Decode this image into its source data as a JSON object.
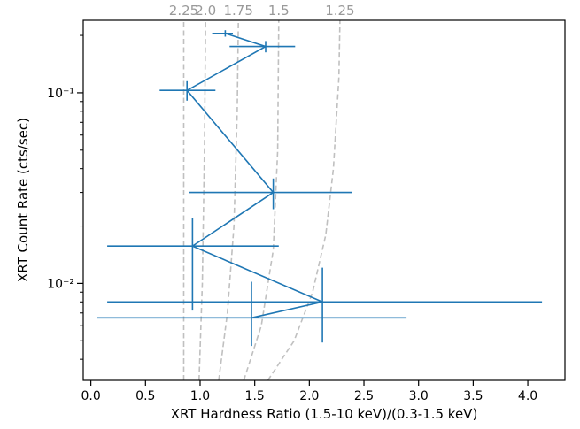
{
  "chart_data": {
    "type": "scatter",
    "title": "",
    "xlabel": "XRT Hardness Ratio (1.5-10 keV)/(0.3-1.5 keV)",
    "ylabel": "XRT Count Rate (cts/sec)",
    "xlim": [
      -0.07,
      4.34
    ],
    "ylim": [
      0.0031,
      0.24
    ],
    "yscale": "log",
    "xticks": [
      0.0,
      0.5,
      1.0,
      1.5,
      2.0,
      2.5,
      3.0,
      3.5,
      4.0
    ],
    "xtick_labels": [
      "0.0",
      "0.5",
      "1.0",
      "1.5",
      "2.0",
      "2.5",
      "3.0",
      "3.5",
      "4.0"
    ],
    "yticks_major": [
      0.01,
      0.1
    ],
    "ytick_labels": [
      "10⁻²",
      "10⁻¹"
    ],
    "grid": false,
    "series": [
      {
        "color": "#1f77b4",
        "points": [
          {
            "x": 1.23,
            "y": 0.205,
            "xerr": [
              0.12,
              0.07
            ],
            "yerr": [
              0.008,
              0.008
            ]
          },
          {
            "x": 1.6,
            "y": 0.175,
            "xerr": [
              0.33,
              0.27
            ],
            "yerr": [
              0.012,
              0.012
            ]
          },
          {
            "x": 0.88,
            "y": 0.103,
            "xerr": [
              0.25,
              0.26
            ],
            "yerr": [
              0.012,
              0.012
            ]
          },
          {
            "x": 1.67,
            "y": 0.03,
            "xerr": [
              0.77,
              0.72
            ],
            "yerr": [
              0.0055,
              0.0055
            ]
          },
          {
            "x": 0.93,
            "y": 0.0157,
            "xerr": [
              0.78,
              0.79
            ],
            "yerr": [
              0.0085,
              0.0062
            ]
          },
          {
            "x": 2.12,
            "y": 0.008,
            "xerr": [
              1.97,
              2.01
            ],
            "yerr": [
              0.0031,
              0.0041
            ]
          },
          {
            "x": 1.47,
            "y": 0.0066,
            "xerr": [
              1.41,
              1.42
            ],
            "yerr": [
              0.0019,
              0.0036
            ]
          }
        ]
      }
    ],
    "model_curves": {
      "color": "#c0c0c0",
      "style": "dashed",
      "labels": [
        "2.25",
        "2.0",
        "1.75",
        "1.5",
        "1.25"
      ],
      "curves": [
        {
          "label": "2.25",
          "points": [
            [
              0.85,
              0.0031
            ],
            [
              0.85,
              0.24
            ]
          ]
        },
        {
          "label": "2.0",
          "points": [
            [
              0.99,
              0.0031
            ],
            [
              1.02,
              0.01
            ],
            [
              1.04,
              0.05
            ],
            [
              1.05,
              0.24
            ]
          ]
        },
        {
          "label": "1.75",
          "points": [
            [
              1.17,
              0.0031
            ],
            [
              1.25,
              0.007
            ],
            [
              1.31,
              0.02
            ],
            [
              1.34,
              0.08
            ],
            [
              1.35,
              0.24
            ]
          ]
        },
        {
          "label": "1.5",
          "points": [
            [
              1.4,
              0.0031
            ],
            [
              1.56,
              0.006
            ],
            [
              1.67,
              0.015
            ],
            [
              1.71,
              0.05
            ],
            [
              1.72,
              0.24
            ]
          ]
        },
        {
          "label": "1.25",
          "points": [
            [
              1.62,
              0.0031
            ],
            [
              1.86,
              0.005
            ],
            [
              2.03,
              0.009
            ],
            [
              2.15,
              0.018
            ],
            [
              2.22,
              0.04
            ],
            [
              2.27,
              0.12
            ],
            [
              2.28,
              0.24
            ]
          ]
        }
      ]
    }
  }
}
